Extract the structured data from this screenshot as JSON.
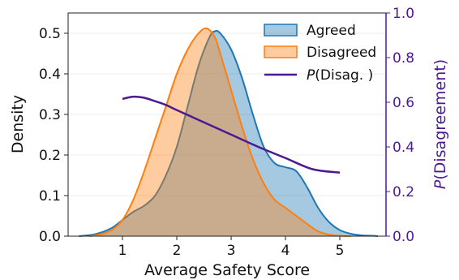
{
  "chart_data": {
    "type": "area",
    "xlabel": "Average Safety Score",
    "ylabel_left": "Density",
    "ylabel_right": "P(Disagreement)",
    "xlim": [
      0,
      5.85
    ],
    "ylim_left": [
      0,
      0.55
    ],
    "ylim_right": [
      0,
      1.0
    ],
    "xticks": [
      1,
      2,
      3,
      4,
      5
    ],
    "yticks_left": [
      0.0,
      0.1,
      0.2,
      0.3,
      0.4,
      0.5
    ],
    "yticks_left_labels": [
      "0.0",
      "0.1",
      "0.2",
      "0.3",
      "0.4",
      "0.5"
    ],
    "yticks_right": [
      0.0,
      0.2,
      0.4,
      0.6,
      0.8,
      1.0
    ],
    "yticks_right_labels": [
      "0.0",
      "0.2",
      "0.4",
      "0.6",
      "0.8",
      "1.0"
    ],
    "grid": true,
    "legend_position": "top-right",
    "legend": [
      {
        "label": "Agreed",
        "kind": "patch",
        "color": "#1f77b4"
      },
      {
        "label": "Disagreed",
        "kind": "patch",
        "color": "#ff7f0e"
      },
      {
        "label_prefix": "P",
        "label_suffix": "(Disag. )",
        "kind": "line",
        "color": "#4b1a8f"
      }
    ],
    "series": [
      {
        "name": "Agreed",
        "axis": "left",
        "fill": "#1f77b4",
        "fill_opacity": 0.4,
        "x": [
          0.2,
          0.5,
          0.8,
          1.0,
          1.2,
          1.4,
          1.6,
          1.8,
          2.0,
          2.2,
          2.4,
          2.6,
          2.7,
          2.8,
          3.0,
          3.2,
          3.4,
          3.6,
          3.8,
          4.0,
          4.2,
          4.4,
          4.6,
          4.8,
          5.0,
          5.2,
          5.4,
          5.6,
          5.7
        ],
        "y": [
          0.0,
          0.005,
          0.02,
          0.04,
          0.06,
          0.075,
          0.1,
          0.15,
          0.22,
          0.32,
          0.42,
          0.49,
          0.505,
          0.5,
          0.46,
          0.39,
          0.3,
          0.22,
          0.18,
          0.17,
          0.16,
          0.12,
          0.07,
          0.035,
          0.015,
          0.006,
          0.002,
          0.001,
          0.0
        ]
      },
      {
        "name": "Disagreed",
        "axis": "left",
        "fill": "#ff7f0e",
        "fill_opacity": 0.4,
        "x": [
          0.4,
          0.6,
          0.8,
          1.0,
          1.2,
          1.4,
          1.6,
          1.8,
          2.0,
          2.2,
          2.4,
          2.55,
          2.7,
          2.8,
          3.0,
          3.2,
          3.4,
          3.6,
          3.8,
          4.0,
          4.2,
          4.4,
          4.6,
          4.8,
          5.0,
          5.2
        ],
        "y": [
          0.0,
          0.005,
          0.015,
          0.04,
          0.09,
          0.16,
          0.24,
          0.32,
          0.4,
          0.46,
          0.5,
          0.512,
          0.49,
          0.45,
          0.36,
          0.27,
          0.19,
          0.13,
          0.09,
          0.07,
          0.05,
          0.03,
          0.012,
          0.004,
          0.001,
          0.0
        ]
      },
      {
        "name": "P(Disag. )",
        "axis": "right",
        "type": "line",
        "color": "#4b1a8f",
        "x": [
          1.0,
          1.2,
          1.4,
          1.6,
          1.8,
          2.0,
          2.5,
          3.0,
          3.5,
          4.0,
          4.5,
          5.0
        ],
        "y": [
          0.615,
          0.625,
          0.62,
          0.605,
          0.588,
          0.565,
          0.51,
          0.455,
          0.4,
          0.35,
          0.3,
          0.285
        ]
      }
    ]
  }
}
